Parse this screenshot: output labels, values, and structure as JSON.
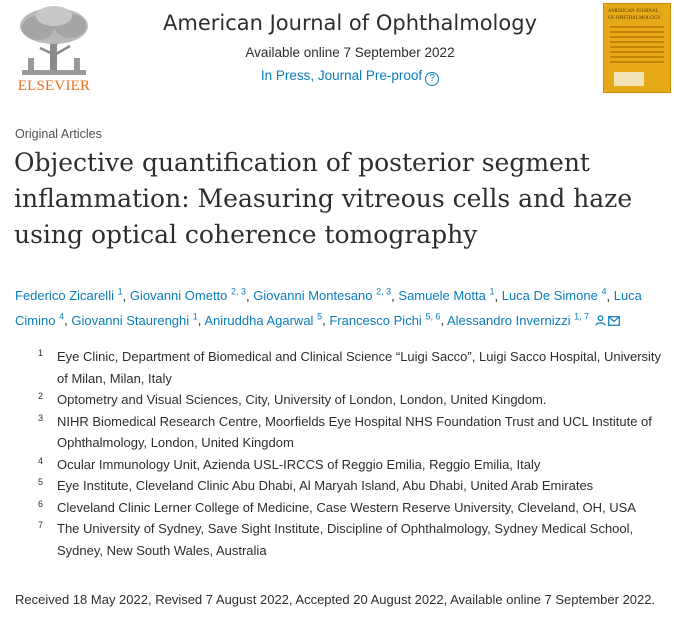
{
  "header": {
    "publisher_logo_text": "ELSEVIER",
    "journal_title": "American Journal of Ophthalmology",
    "available_online": "Available online 7 September 2022",
    "in_press": "In Press, Journal Pre-proof",
    "help_icon": "question-circle-icon",
    "cover_title": "AMERICAN JOURNAL OF OPHTHALMOLOGY",
    "cover_color": "#e6a917"
  },
  "article": {
    "section": "Original Articles",
    "title": "Objective quantification of posterior segment inflammation: Measuring vitreous cells and haze using optical coherence tomography"
  },
  "authors": [
    {
      "name": "Federico Zicarelli",
      "sup": "1"
    },
    {
      "name": "Giovanni Ometto",
      "sup": "2, 3"
    },
    {
      "name": "Giovanni Montesano",
      "sup": "2, 3"
    },
    {
      "name": "Samuele Motta",
      "sup": "1"
    },
    {
      "name": "Luca De Simone",
      "sup": "4"
    },
    {
      "name": "Luca Cimino",
      "sup": "4"
    },
    {
      "name": "Giovanni Staurenghi",
      "sup": "1"
    },
    {
      "name": "Aniruddha Agarwal",
      "sup": "5"
    },
    {
      "name": "Francesco Pichi",
      "sup": "5, 6"
    },
    {
      "name": "Alessandro Invernizzi",
      "sup": "1, 7"
    }
  ],
  "author_icons": [
    "person-icon",
    "envelope-icon"
  ],
  "affiliations": [
    {
      "num": "1",
      "text": "Eye Clinic, Department of Biomedical and Clinical Science “Luigi Sacco”, Luigi Sacco Hospital, University of Milan, Milan, Italy"
    },
    {
      "num": "2",
      "text": "Optometry and Visual Sciences, City, University of London, London, United Kingdom."
    },
    {
      "num": "3",
      "text": "NIHR Biomedical Research Centre, Moorfields Eye Hospital NHS Foundation Trust and UCL Institute of Ophthalmology, London, United Kingdom"
    },
    {
      "num": "4",
      "text": "Ocular Immunology Unit, Azienda USL-IRCCS of Reggio Emilia, Reggio Emilia, Italy"
    },
    {
      "num": "5",
      "text": "Eye Institute, Cleveland Clinic Abu Dhabi, Al Maryah Island, Abu Dhabi, United Arab Emirates"
    },
    {
      "num": "6",
      "text": "Cleveland Clinic Lerner College of Medicine, Case Western Reserve University, Cleveland, OH, USA"
    },
    {
      "num": "7",
      "text": "The University of Sydney, Save Sight Institute, Discipline of Ophthalmology, Sydney Medical School, Sydney, New South Wales, Australia"
    }
  ],
  "history": "Received 18 May 2022, Revised 7 August 2022, Accepted 20 August 2022, Available online 7 September 2022.",
  "colors": {
    "link": "#0c7dbb",
    "elsevier_orange": "#e9711c",
    "text": "#2e2e2e"
  }
}
